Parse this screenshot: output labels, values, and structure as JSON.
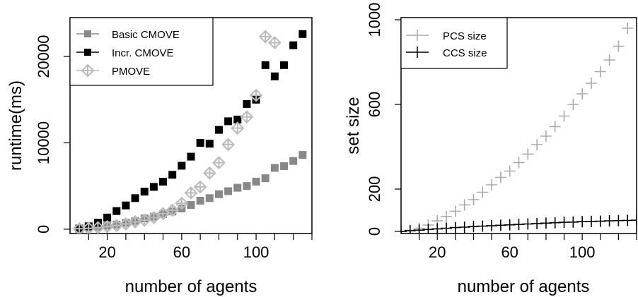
{
  "chart_data": [
    {
      "type": "scatter",
      "xlabel": "number of agents",
      "ylabel": "runtime(ms)",
      "xlim": [
        0,
        130
      ],
      "ylim": [
        -500,
        24500
      ],
      "xticks": [
        20,
        60,
        100
      ],
      "yticks": [
        0,
        10000,
        20000
      ],
      "xtick_labels": [
        "20",
        "60",
        "100"
      ],
      "ytick_labels": [
        "0",
        "10000",
        "20000"
      ],
      "legend_position": "top-left",
      "series": [
        {
          "name": "Basic CMOVE",
          "color": "#888888",
          "marker": "square",
          "x": [
            5,
            10,
            15,
            20,
            25,
            30,
            35,
            40,
            45,
            50,
            55,
            60,
            65,
            70,
            75,
            80,
            85,
            90,
            95,
            100,
            105,
            110,
            115,
            120,
            125
          ],
          "y": [
            80,
            180,
            280,
            400,
            530,
            750,
            950,
            1250,
            1450,
            1750,
            2050,
            2400,
            2800,
            3300,
            3600,
            4050,
            4400,
            4800,
            5000,
            5500,
            5900,
            7100,
            7300,
            7900,
            8600
          ]
        },
        {
          "name": "Incr. CMOVE",
          "color": "#000000",
          "marker": "square",
          "x": [
            5,
            10,
            15,
            20,
            25,
            30,
            35,
            40,
            45,
            50,
            55,
            60,
            65,
            70,
            75,
            80,
            85,
            90,
            95,
            100,
            105,
            110,
            115,
            120,
            125
          ],
          "y": [
            80,
            330,
            750,
            1350,
            2100,
            2750,
            3600,
            4350,
            4900,
            5500,
            6300,
            7350,
            8400,
            10000,
            9900,
            11500,
            12500,
            12700,
            14500,
            15000,
            19000,
            17700,
            19000,
            21300,
            22600
          ]
        },
        {
          "name": "PMOVE",
          "color": "#bbbbbb",
          "marker": "diamond",
          "x": [
            5,
            10,
            15,
            20,
            25,
            30,
            35,
            40,
            45,
            50,
            55,
            60,
            65,
            70,
            75,
            80,
            85,
            90,
            95,
            100,
            105,
            110
          ],
          "y": [
            50,
            100,
            180,
            300,
            420,
            600,
            850,
            1050,
            1350,
            1800,
            2200,
            3000,
            4200,
            4900,
            6500,
            7700,
            9800,
            11700,
            13000,
            15500,
            22300,
            21600
          ]
        }
      ]
    },
    {
      "type": "scatter",
      "xlabel": "number of agents",
      "ylabel": "set size",
      "xlim": [
        0,
        130
      ],
      "ylim": [
        -10,
        1010
      ],
      "xticks": [
        20,
        60,
        100
      ],
      "yticks": [
        0,
        200,
        600,
        1000
      ],
      "xtick_labels": [
        "20",
        "60",
        "100"
      ],
      "ytick_labels": [
        "0",
        "200",
        "600",
        "1000"
      ],
      "legend_position": "top-left",
      "series": [
        {
          "name": "PCS size",
          "color": "#aaaaaa",
          "marker": "plus",
          "x": [
            5,
            10,
            15,
            20,
            25,
            30,
            35,
            40,
            45,
            50,
            55,
            60,
            65,
            70,
            75,
            80,
            85,
            90,
            95,
            100,
            105,
            110,
            115,
            120,
            125
          ],
          "y": [
            5,
            15,
            30,
            50,
            70,
            95,
            125,
            150,
            185,
            220,
            255,
            285,
            325,
            365,
            410,
            450,
            495,
            545,
            600,
            650,
            700,
            755,
            810,
            875,
            960
          ]
        },
        {
          "name": "CCS size",
          "color": "#000000",
          "marker": "plus",
          "x": [
            0,
            5,
            10,
            15,
            20,
            25,
            30,
            35,
            40,
            45,
            50,
            55,
            60,
            65,
            70,
            75,
            80,
            85,
            90,
            95,
            100,
            105,
            110,
            115,
            120,
            125,
            130
          ],
          "y": [
            0,
            3,
            6,
            9,
            12,
            15,
            18,
            20,
            23,
            25,
            27,
            29,
            31,
            33,
            35,
            37,
            39,
            41,
            43,
            44,
            46,
            47,
            48,
            50,
            51,
            52,
            53
          ]
        }
      ]
    }
  ]
}
